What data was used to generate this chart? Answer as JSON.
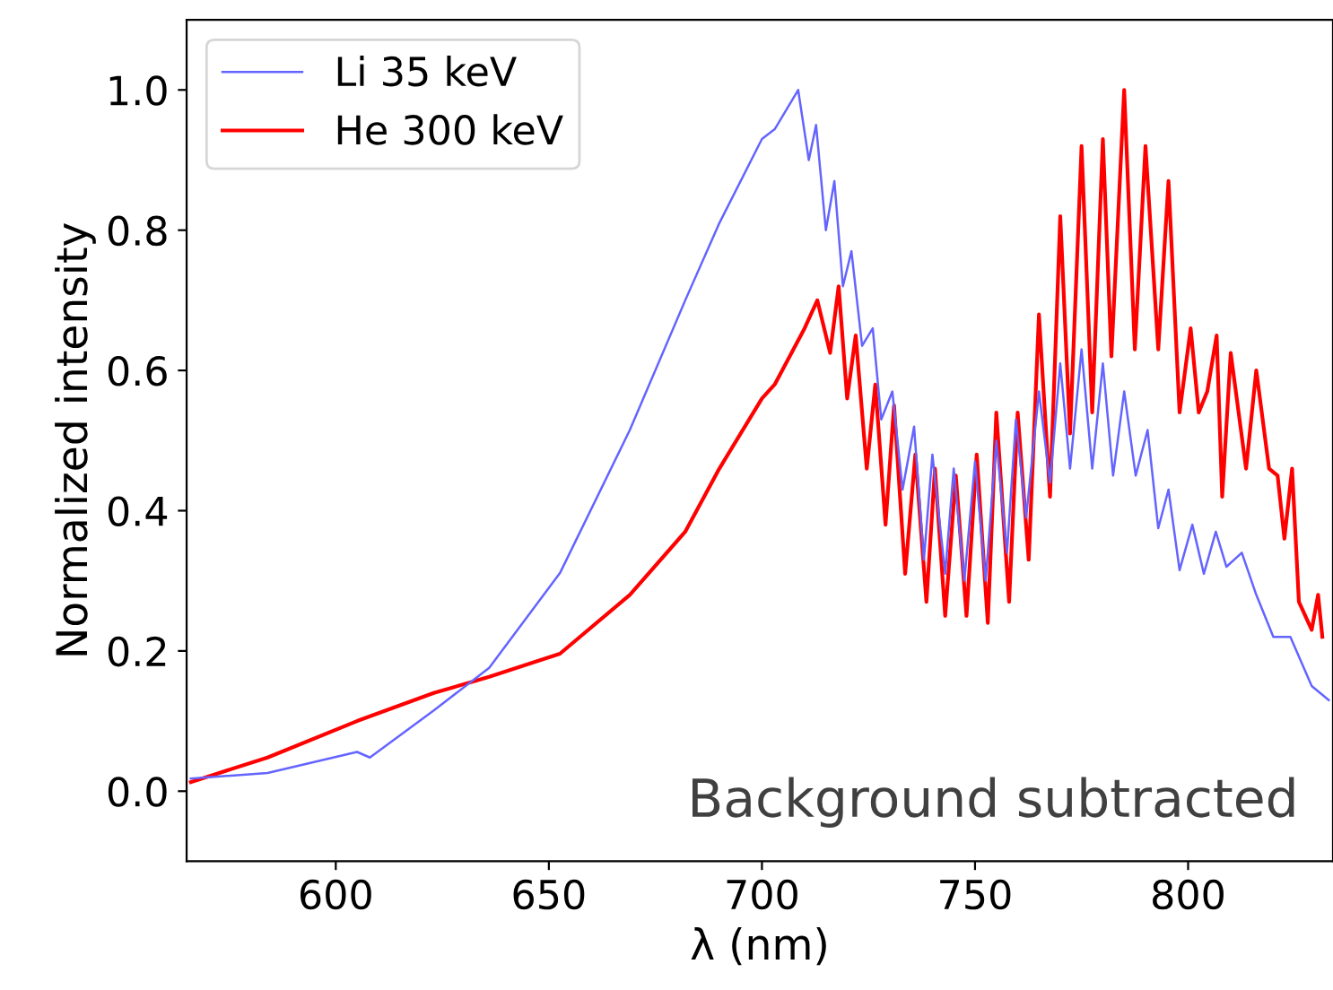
{
  "chart_data": {
    "type": "line",
    "xlabel": "λ (nm)",
    "ylabel": "Normalized intensity",
    "annotations": [
      "Background subtracted"
    ],
    "xlim": [
      565,
      834
    ],
    "xticks": [
      600,
      650,
      700,
      750,
      800
    ],
    "ylim": [
      -0.1,
      1.1
    ],
    "yticks": [
      {
        "value": 0,
        "label": "0.0"
      },
      {
        "value": 0.2,
        "label": "0.2"
      },
      {
        "value": 0.4,
        "label": "0.4"
      },
      {
        "value": 0.6,
        "label": "0.6"
      },
      {
        "value": 0.8,
        "label": "0.8"
      },
      {
        "value": 1,
        "label": "1.0"
      }
    ],
    "legend": "top left",
    "grid": false,
    "series": [
      {
        "name": "Li 35 keV",
        "color": "#6464ff",
        "x": [
          566,
          584,
          605,
          608,
          623,
          636,
          652.6,
          669,
          682,
          690,
          700,
          703,
          708.5,
          711,
          712.7,
          715,
          717,
          719,
          721,
          723.5,
          726,
          728,
          730.6,
          733,
          735.7,
          738,
          740,
          743,
          745,
          747.5,
          750,
          752.5,
          755,
          757.5,
          759.6,
          762,
          765,
          767.6,
          770,
          772.3,
          775,
          777.5,
          780,
          782.4,
          785,
          787.7,
          790.5,
          793,
          795.4,
          798,
          801,
          803.7,
          806.5,
          809,
          812.6,
          816,
          820,
          824,
          829,
          833
        ],
        "values": [
          0.018,
          0.026,
          0.056,
          0.048,
          0.115,
          0.176,
          0.311,
          0.515,
          0.7,
          0.81,
          0.93,
          0.944,
          1.0,
          0.9,
          0.95,
          0.8,
          0.87,
          0.72,
          0.77,
          0.635,
          0.66,
          0.53,
          0.57,
          0.43,
          0.52,
          0.33,
          0.48,
          0.31,
          0.46,
          0.3,
          0.47,
          0.3,
          0.5,
          0.34,
          0.53,
          0.39,
          0.57,
          0.44,
          0.61,
          0.46,
          0.63,
          0.46,
          0.61,
          0.45,
          0.57,
          0.45,
          0.515,
          0.375,
          0.43,
          0.315,
          0.38,
          0.31,
          0.37,
          0.32,
          0.34,
          0.28,
          0.22,
          0.22,
          0.15,
          0.13
        ]
      },
      {
        "name": "He 300 keV",
        "color": "#ff0000",
        "x": [
          566,
          584,
          605,
          623,
          636,
          652.6,
          669,
          682,
          690,
          700,
          703,
          710,
          713,
          716,
          718,
          720,
          722,
          724.6,
          726.6,
          729,
          731,
          733.6,
          736,
          738.6,
          740.6,
          743,
          745.5,
          748,
          750.4,
          753,
          755,
          758,
          760,
          762.6,
          765,
          767.6,
          770,
          772.3,
          775,
          777.5,
          780,
          782,
          785,
          787.5,
          790,
          793,
          795.4,
          798,
          800.6,
          802.5,
          804.5,
          806.7,
          808,
          810,
          813.6,
          816,
          819,
          821,
          822.6,
          824.4,
          826,
          829,
          830.5,
          831.5
        ],
        "values": [
          0.013,
          0.048,
          0.1,
          0.14,
          0.163,
          0.196,
          0.28,
          0.37,
          0.46,
          0.56,
          0.58,
          0.66,
          0.7,
          0.625,
          0.72,
          0.56,
          0.65,
          0.46,
          0.58,
          0.38,
          0.55,
          0.31,
          0.48,
          0.27,
          0.46,
          0.25,
          0.45,
          0.25,
          0.48,
          0.24,
          0.54,
          0.27,
          0.54,
          0.33,
          0.68,
          0.42,
          0.82,
          0.51,
          0.92,
          0.54,
          0.93,
          0.62,
          1.0,
          0.63,
          0.92,
          0.63,
          0.87,
          0.54,
          0.66,
          0.54,
          0.57,
          0.65,
          0.42,
          0.625,
          0.46,
          0.6,
          0.46,
          0.45,
          0.36,
          0.46,
          0.27,
          0.23,
          0.28,
          0.22
        ]
      }
    ]
  }
}
